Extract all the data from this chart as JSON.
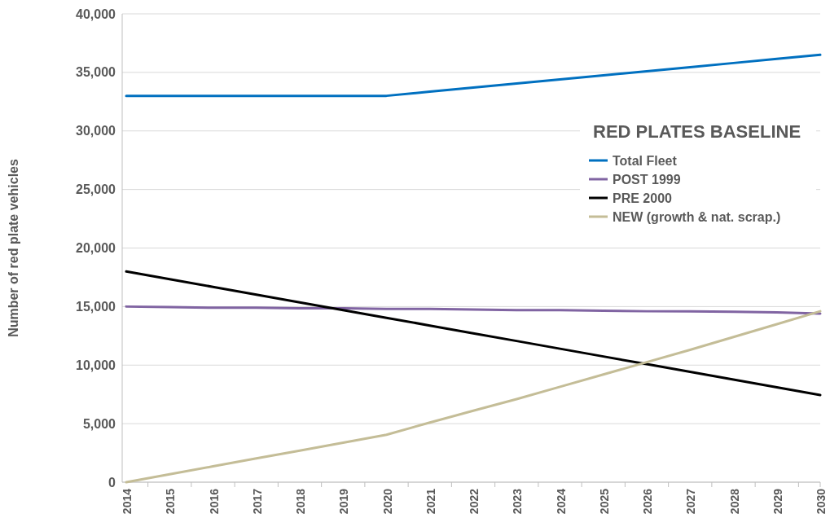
{
  "chart_data": {
    "type": "line",
    "ylabel": "Number of red plate vehicles",
    "legend_title": "RED PLATES BASELINE",
    "legend": "right",
    "grid": "y",
    "marker": "none",
    "line_style": "solid",
    "categories": [
      "2014",
      "2015",
      "2016",
      "2017",
      "2018",
      "2019",
      "2020",
      "2021",
      "2022",
      "2023",
      "2024",
      "2025",
      "2026",
      "2027",
      "2028",
      "2029",
      "2030"
    ],
    "ylim": [
      0,
      40000
    ],
    "yticks": [
      {
        "value": 0,
        "label": "0"
      },
      {
        "value": 5000,
        "label": "5,000"
      },
      {
        "value": 10000,
        "label": "10,000"
      },
      {
        "value": 15000,
        "label": "15,000"
      },
      {
        "value": 20000,
        "label": "20,000"
      },
      {
        "value": 25000,
        "label": "25,000"
      },
      {
        "value": 30000,
        "label": "30,000"
      },
      {
        "value": 35000,
        "label": "35,000"
      },
      {
        "value": 40000,
        "label": "40,000"
      }
    ],
    "series": [
      {
        "name": "Total Fleet",
        "color": "#0070c0",
        "values": [
          33000,
          33000,
          33000,
          33000,
          33000,
          33000,
          33000,
          33350,
          33700,
          34050,
          34400,
          34750,
          35100,
          35450,
          35800,
          36150,
          36500
        ]
      },
      {
        "name": "POST 1999",
        "color": "#8064a2",
        "values": [
          15000,
          14950,
          14900,
          14900,
          14850,
          14850,
          14800,
          14800,
          14750,
          14700,
          14700,
          14650,
          14600,
          14600,
          14550,
          14500,
          14400
        ]
      },
      {
        "name": "PRE 2000",
        "color": "#000000",
        "values": [
          18000,
          17340,
          16680,
          16020,
          15360,
          14700,
          14040,
          13380,
          12720,
          12060,
          11400,
          10740,
          10080,
          9420,
          8760,
          8100,
          7450
        ]
      },
      {
        "name": "NEW (growth & nat. scrap.)",
        "color": "#c4bd97",
        "values": [
          0,
          680,
          1350,
          2030,
          2700,
          3380,
          4050,
          5100,
          6100,
          7100,
          8150,
          9200,
          10250,
          11300,
          12400,
          13500,
          14600
        ]
      }
    ]
  }
}
